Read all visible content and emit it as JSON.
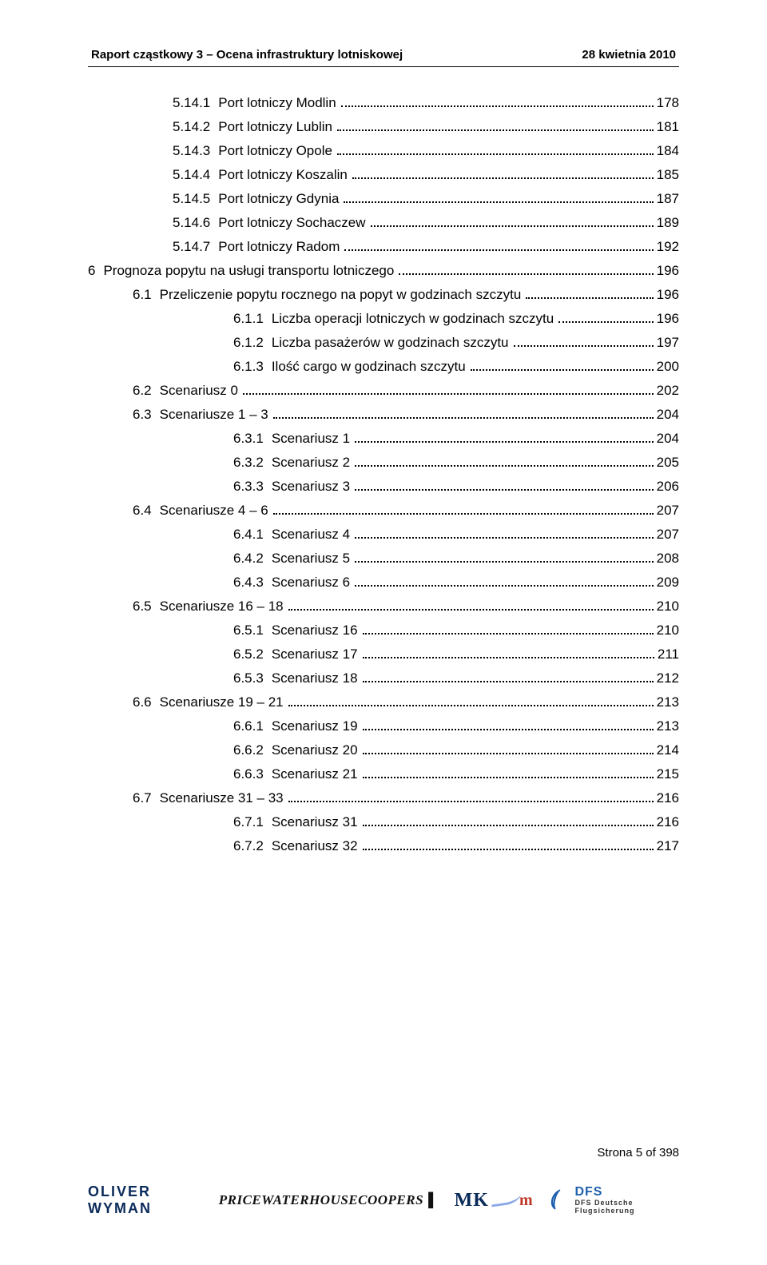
{
  "header": {
    "left": "Raport cząstkowy 3 – Ocena infrastruktury lotniskowej",
    "right": "28 kwietnia 2010"
  },
  "toc": [
    {
      "lvl": 3,
      "num": "5.14.1",
      "title": "Port lotniczy Modlin",
      "page": "178"
    },
    {
      "lvl": 3,
      "num": "5.14.2",
      "title": "Port lotniczy Lublin",
      "page": "181"
    },
    {
      "lvl": 3,
      "num": "5.14.3",
      "title": "Port lotniczy Opole",
      "page": "184"
    },
    {
      "lvl": 3,
      "num": "5.14.4",
      "title": "Port lotniczy Koszalin",
      "page": "185"
    },
    {
      "lvl": 3,
      "num": "5.14.5",
      "title": "Port lotniczy Gdynia",
      "page": "187"
    },
    {
      "lvl": 3,
      "num": "5.14.6",
      "title": "Port lotniczy Sochaczew",
      "page": "189"
    },
    {
      "lvl": 3,
      "num": "5.14.7",
      "title": "Port lotniczy Radom",
      "page": "192"
    },
    {
      "lvl": 1,
      "num": "6",
      "title": "Prognoza popytu na usługi transportu lotniczego",
      "page": "196"
    },
    {
      "lvl": 2,
      "num": "6.1",
      "title": "Przeliczenie popytu rocznego na popyt w godzinach szczytu",
      "page": "196"
    },
    {
      "lvl": 4,
      "num": "6.1.1",
      "title": "Liczba operacji lotniczych w godzinach szczytu",
      "page": "196"
    },
    {
      "lvl": 4,
      "num": "6.1.2",
      "title": "Liczba pasażerów w godzinach szczytu",
      "page": "197"
    },
    {
      "lvl": 4,
      "num": "6.1.3",
      "title": "Ilość cargo w godzinach szczytu",
      "page": "200"
    },
    {
      "lvl": 2,
      "num": "6.2",
      "title": "Scenariusz 0",
      "page": "202"
    },
    {
      "lvl": 2,
      "num": "6.3",
      "title": "Scenariusze 1 – 3",
      "page": "204"
    },
    {
      "lvl": 4,
      "num": "6.3.1",
      "title": "Scenariusz 1",
      "page": "204"
    },
    {
      "lvl": 4,
      "num": "6.3.2",
      "title": "Scenariusz 2",
      "page": "205"
    },
    {
      "lvl": 4,
      "num": "6.3.3",
      "title": "Scenariusz 3",
      "page": "206"
    },
    {
      "lvl": 2,
      "num": "6.4",
      "title": "Scenariusze 4 – 6",
      "page": "207"
    },
    {
      "lvl": 4,
      "num": "6.4.1",
      "title": "Scenariusz 4",
      "page": "207"
    },
    {
      "lvl": 4,
      "num": "6.4.2",
      "title": "Scenariusz 5",
      "page": "208"
    },
    {
      "lvl": 4,
      "num": "6.4.3",
      "title": "Scenariusz 6",
      "page": "209"
    },
    {
      "lvl": 2,
      "num": "6.5",
      "title": "Scenariusze 16 – 18",
      "page": "210"
    },
    {
      "lvl": 4,
      "num": "6.5.1",
      "title": "Scenariusz 16",
      "page": "210"
    },
    {
      "lvl": 4,
      "num": "6.5.2",
      "title": "Scenariusz 17",
      "page": "211"
    },
    {
      "lvl": 4,
      "num": "6.5.3",
      "title": "Scenariusz 18",
      "page": "212"
    },
    {
      "lvl": 2,
      "num": "6.6",
      "title": "Scenariusze 19 – 21",
      "page": "213"
    },
    {
      "lvl": 4,
      "num": "6.6.1",
      "title": "Scenariusz 19",
      "page": "213"
    },
    {
      "lvl": 4,
      "num": "6.6.2",
      "title": "Scenariusz 20",
      "page": "214"
    },
    {
      "lvl": 4,
      "num": "6.6.3",
      "title": "Scenariusz 21",
      "page": "215"
    },
    {
      "lvl": 2,
      "num": "6.7",
      "title": "Scenariusze 31 – 33",
      "page": "216"
    },
    {
      "lvl": 4,
      "num": "6.7.1",
      "title": "Scenariusz 31",
      "page": "216"
    },
    {
      "lvl": 4,
      "num": "6.7.2",
      "title": "Scenariusz 32",
      "page": "217"
    }
  ],
  "footer": {
    "page_of": "Strona 5 of 398",
    "logos": {
      "oliver_wyman": "OLIVER WYMAN",
      "pwc": "PRICEWATERHOUSECOOPERS",
      "mk": "MK",
      "dfs_line1": "DFS",
      "dfs_line2": "DFS Deutsche Flugsicherung"
    }
  }
}
